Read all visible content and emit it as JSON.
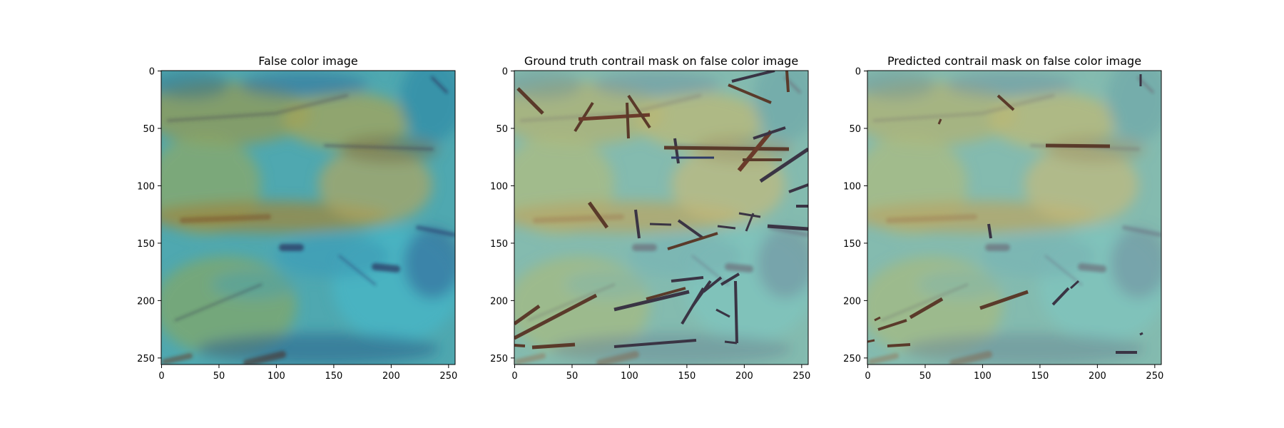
{
  "figure": {
    "panels": [
      {
        "title": "False color image",
        "overlay": "none",
        "xticks": [
          "0",
          "50",
          "100",
          "150",
          "200",
          "250"
        ],
        "yticks": [
          "0",
          "50",
          "100",
          "150",
          "200",
          "250"
        ]
      },
      {
        "title": "Ground truth contrail mask on false color image",
        "overlay": "ground-truth",
        "xticks": [
          "0",
          "50",
          "100",
          "150",
          "200",
          "250"
        ],
        "yticks": [
          "0",
          "50",
          "100",
          "150",
          "200",
          "250"
        ]
      },
      {
        "title": "Predicted contrail mask on false color image",
        "overlay": "predicted",
        "xticks": [
          "0",
          "50",
          "100",
          "150",
          "200",
          "250"
        ],
        "yticks": [
          "0",
          "50",
          "100",
          "150",
          "200",
          "250"
        ]
      }
    ],
    "image_extent": [
      0,
      256
    ],
    "tick_values": [
      0,
      50,
      100,
      150,
      200,
      250
    ],
    "colors": {
      "teal": "#3aa8b4",
      "olive": "#9a9a55",
      "dark_blue": "#233a7a",
      "brown": "#7a4a2a",
      "mask_dark": "#3a3444"
    }
  }
}
